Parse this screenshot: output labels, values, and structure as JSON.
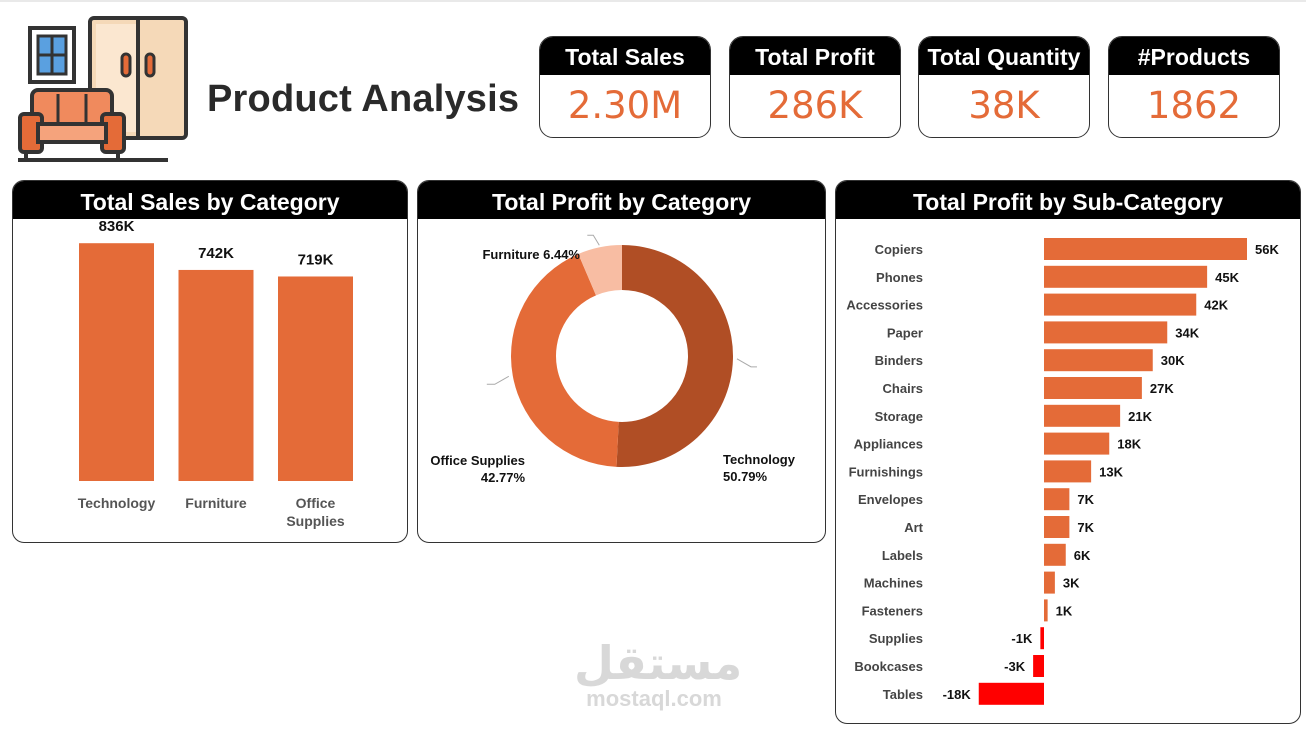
{
  "header": {
    "title": "Product Analysis"
  },
  "kpis": [
    {
      "label": "Total Sales",
      "value": "2.30M"
    },
    {
      "label": "Total Profit",
      "value": "286K"
    },
    {
      "label": "Total Quantity",
      "value": "38K"
    },
    {
      "label": "#Products",
      "value": "1862"
    }
  ],
  "watermark": {
    "arabic": "مستقل",
    "latin": "mostaql.com"
  },
  "colors": {
    "accent": "#e46b38",
    "negative": "#ff0000",
    "header_bg": "#000000",
    "donut_tech": "#b04e25",
    "donut_office": "#e46b38",
    "donut_furniture": "#f8bda3"
  },
  "chart_data": [
    {
      "type": "bar",
      "title": "Total Sales by Category",
      "categories": [
        "Technology",
        "Furniture",
        "Office Supplies"
      ],
      "values": [
        836000,
        742000,
        719000
      ],
      "data_labels": [
        "836K",
        "742K",
        "719K"
      ],
      "ylim": [
        0,
        900000
      ],
      "grid": false
    },
    {
      "type": "pie",
      "title": "Total Profit by Category",
      "donut": true,
      "slices": [
        {
          "label": "Technology",
          "percent": 50.79,
          "percent_label": "50.79%"
        },
        {
          "label": "Office Supplies",
          "percent": 42.77,
          "percent_label": "42.77%"
        },
        {
          "label": "Furniture",
          "percent": 6.44,
          "percent_label": "6.44%"
        }
      ]
    },
    {
      "type": "bar",
      "orientation": "horizontal",
      "title": "Total Profit by Sub-Category",
      "categories": [
        "Copiers",
        "Phones",
        "Accessories",
        "Paper",
        "Binders",
        "Chairs",
        "Storage",
        "Appliances",
        "Furnishings",
        "Envelopes",
        "Art",
        "Labels",
        "Machines",
        "Fasteners",
        "Supplies",
        "Bookcases",
        "Tables"
      ],
      "values": [
        56000,
        45000,
        42000,
        34000,
        30000,
        27000,
        21000,
        18000,
        13000,
        7000,
        7000,
        6000,
        3000,
        1000,
        -1000,
        -3000,
        -18000
      ],
      "data_labels": [
        "56K",
        "45K",
        "42K",
        "34K",
        "30K",
        "27K",
        "21K",
        "18K",
        "13K",
        "7K",
        "7K",
        "6K",
        "3K",
        "1K",
        "-1K",
        "-3K",
        "-18K"
      ],
      "xlim": [
        -18000,
        56000
      ],
      "grid": false
    }
  ]
}
